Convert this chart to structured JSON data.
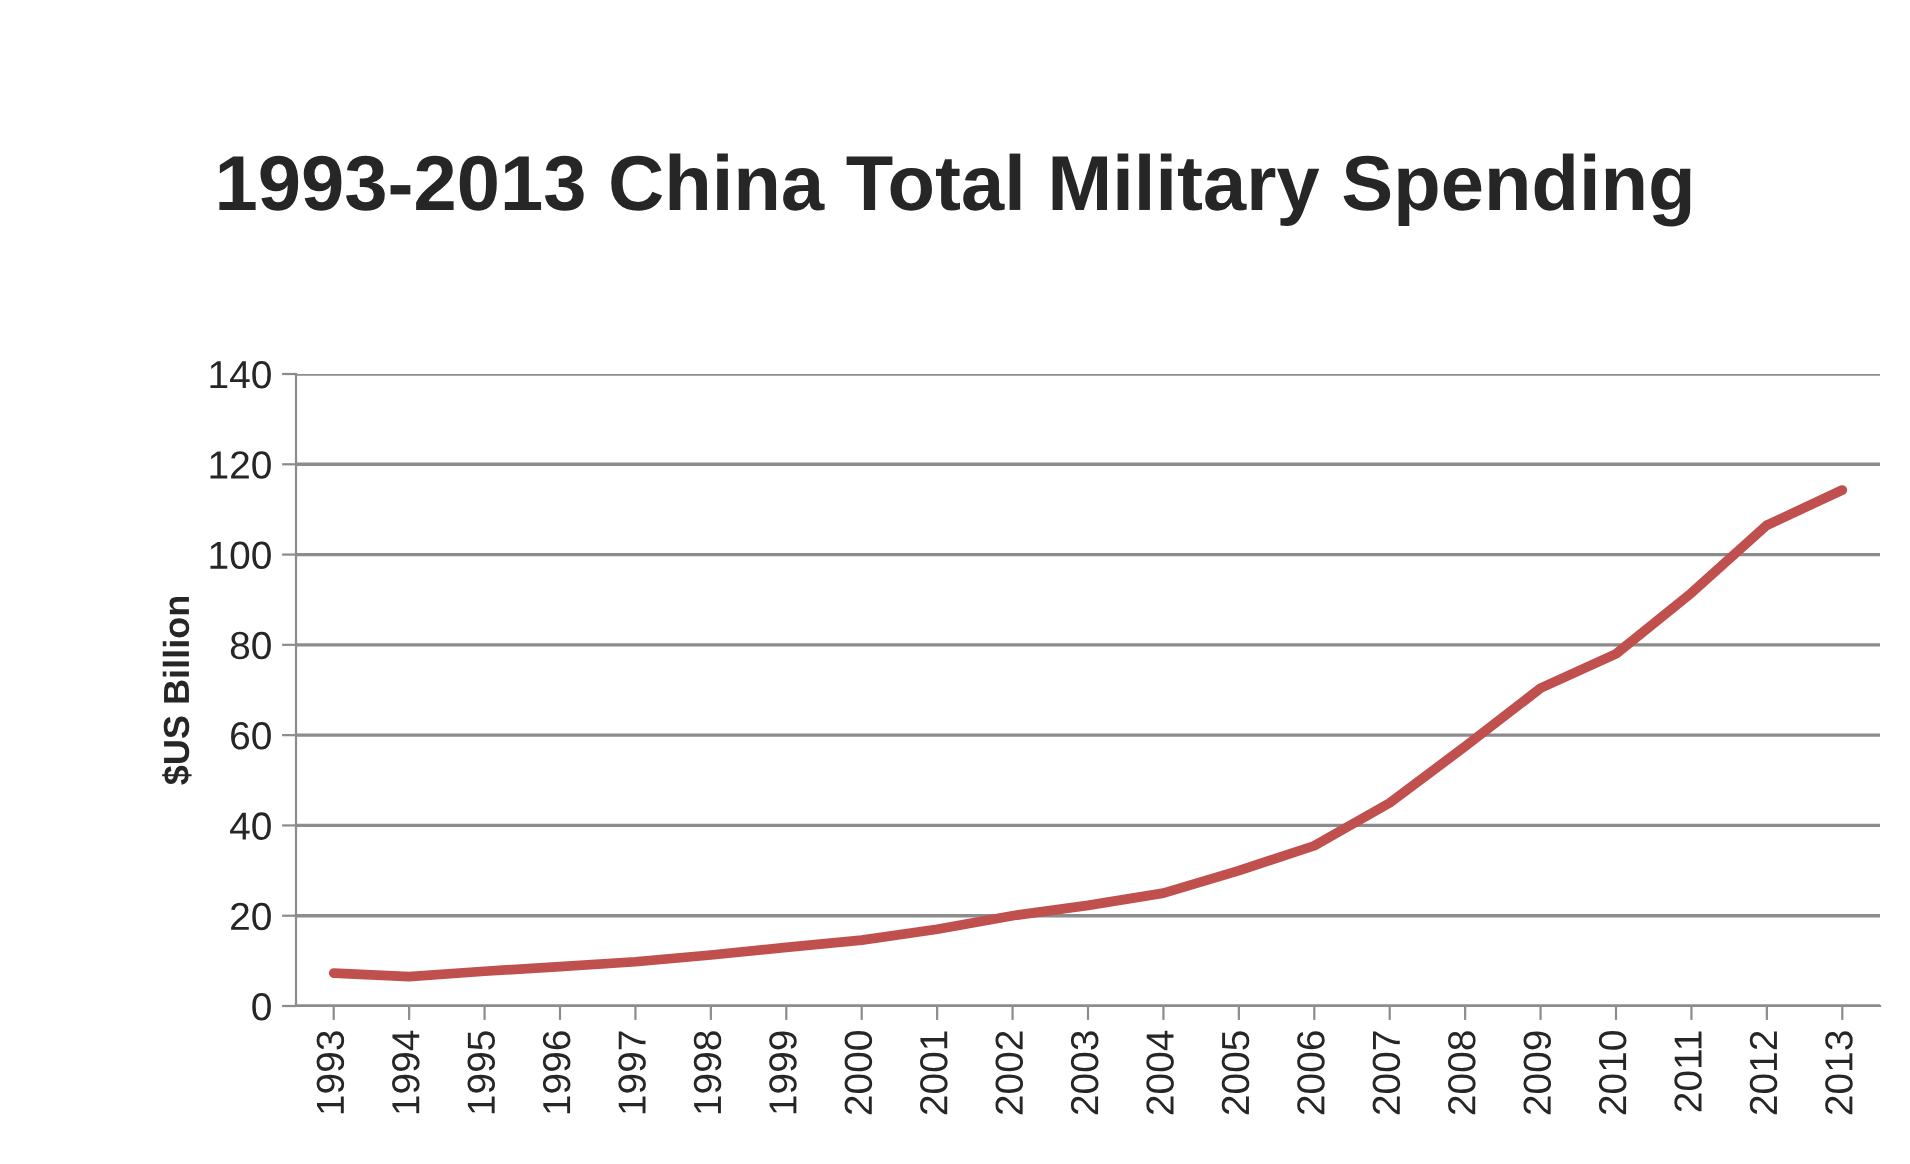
{
  "chart_data": {
    "type": "line",
    "title": "1993-2013 China Total Military Spending",
    "ylabel": "$US Billion",
    "categories": [
      "1993",
      "1994",
      "1995",
      "1996",
      "1997",
      "1998",
      "1999",
      "2000",
      "2001",
      "2002",
      "2003",
      "2004",
      "2005",
      "2006",
      "2007",
      "2008",
      "2009",
      "2010",
      "2011",
      "2012",
      "2013"
    ],
    "series": [
      {
        "color": "#c0504d",
        "values": [
          7.3,
          6.5,
          7.7,
          8.7,
          9.8,
          11.3,
          13,
          14.6,
          17,
          20,
          22.3,
          25,
          30,
          35.5,
          45,
          57.5,
          70.4,
          78,
          91.5,
          106.5,
          114.3
        ]
      }
    ],
    "ylim": [
      0,
      140
    ],
    "yticks": [
      0,
      20,
      40,
      60,
      80,
      100,
      120,
      140
    ],
    "grid": "y",
    "marker": "none",
    "line_style": "solid"
  }
}
